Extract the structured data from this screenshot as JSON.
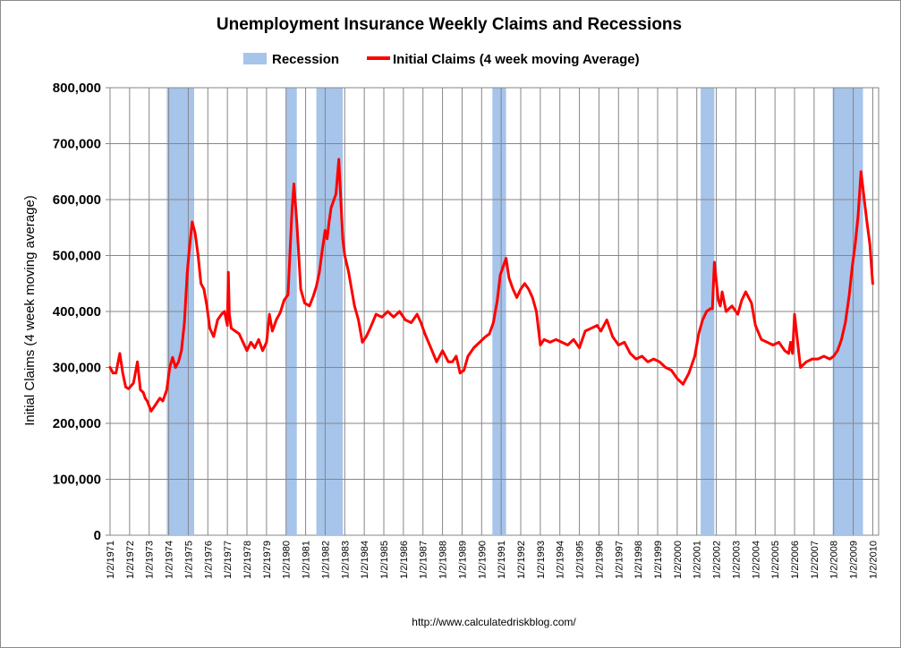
{
  "chart_data": {
    "type": "line",
    "title": "Unemployment Insurance Weekly Claims and Recessions",
    "ylabel": "Initial Claims (4 week moving average)",
    "xlabel": "",
    "source": "http://www.calculatedriskblog.com/",
    "ylim": [
      0,
      800000
    ],
    "xlim": [
      1971.0,
      2010.3
    ],
    "grid": "vertical and horizontal",
    "legend_position": "top-center",
    "yticks": [
      "0",
      "100,000",
      "200,000",
      "300,000",
      "400,000",
      "500,000",
      "600,000",
      "700,000",
      "800,000"
    ],
    "ytick_values": [
      0,
      100000,
      200000,
      300000,
      400000,
      500000,
      600000,
      700000,
      800000
    ],
    "xticks": [
      "1/2/1971",
      "1/2/1972",
      "1/2/1973",
      "1/2/1974",
      "1/2/1975",
      "1/2/1976",
      "1/2/1977",
      "1/2/1978",
      "1/2/1979",
      "1/2/1980",
      "1/2/1981",
      "1/2/1982",
      "1/2/1983",
      "1/2/1984",
      "1/2/1985",
      "1/2/1986",
      "1/2/1987",
      "1/2/1988",
      "1/2/1989",
      "1/2/1990",
      "1/2/1991",
      "1/2/1992",
      "1/2/1993",
      "1/2/1994",
      "1/2/1995",
      "1/2/1996",
      "1/2/1997",
      "1/2/1998",
      "1/2/1999",
      "1/2/2000",
      "1/2/2001",
      "1/2/2002",
      "1/2/2003",
      "1/2/2004",
      "1/2/2005",
      "1/2/2006",
      "1/2/2007",
      "1/2/2008",
      "1/2/2009",
      "1/2/2010"
    ],
    "xtick_values": [
      1971,
      1972,
      1973,
      1974,
      1975,
      1976,
      1977,
      1978,
      1979,
      1980,
      1981,
      1982,
      1983,
      1984,
      1985,
      1986,
      1987,
      1988,
      1989,
      1990,
      1991,
      1992,
      1993,
      1994,
      1995,
      1996,
      1997,
      1998,
      1999,
      2000,
      2001,
      2002,
      2003,
      2004,
      2005,
      2006,
      2007,
      2008,
      2009,
      2010
    ],
    "recessions": {
      "name": "Recession",
      "color": "#a7c4ea",
      "periods": [
        [
          1973.9,
          1975.3
        ],
        [
          1980.0,
          1980.55
        ],
        [
          1981.55,
          1982.9
        ],
        [
          1990.55,
          1991.25
        ],
        [
          2001.2,
          2001.9
        ],
        [
          2007.95,
          2009.5
        ]
      ]
    },
    "series": [
      {
        "name": "Initial Claims (4 week moving Average)",
        "color": "#ff0000",
        "x": [
          1971.0,
          1971.15,
          1971.3,
          1971.5,
          1971.65,
          1971.8,
          1971.95,
          1972.2,
          1972.4,
          1972.55,
          1972.7,
          1972.8,
          1972.9,
          1973.1,
          1973.3,
          1973.45,
          1973.55,
          1973.7,
          1973.9,
          1974.05,
          1974.2,
          1974.35,
          1974.5,
          1974.65,
          1974.8,
          1974.95,
          1975.05,
          1975.2,
          1975.35,
          1975.5,
          1975.65,
          1975.8,
          1975.95,
          1976.1,
          1976.3,
          1976.5,
          1976.7,
          1976.85,
          1977.0,
          1977.05,
          1977.1,
          1977.2,
          1977.4,
          1977.6,
          1977.8,
          1978.0,
          1978.2,
          1978.4,
          1978.6,
          1978.8,
          1979.0,
          1979.15,
          1979.3,
          1979.5,
          1979.7,
          1979.9,
          1980.1,
          1980.3,
          1980.4,
          1980.55,
          1980.75,
          1980.95,
          1981.2,
          1981.4,
          1981.55,
          1981.7,
          1981.85,
          1982.0,
          1982.1,
          1982.2,
          1982.3,
          1982.45,
          1982.55,
          1982.7,
          1982.8,
          1982.9,
          1983.0,
          1983.1,
          1983.2,
          1983.35,
          1983.5,
          1983.7,
          1983.9,
          1984.1,
          1984.3,
          1984.6,
          1984.9,
          1985.2,
          1985.5,
          1985.8,
          1986.1,
          1986.4,
          1986.7,
          1986.9,
          1987.1,
          1987.4,
          1987.7,
          1988.0,
          1988.3,
          1988.5,
          1988.7,
          1988.9,
          1989.1,
          1989.3,
          1989.6,
          1989.9,
          1990.2,
          1990.4,
          1990.6,
          1990.8,
          1990.95,
          1991.1,
          1991.25,
          1991.4,
          1991.6,
          1991.8,
          1992.0,
          1992.2,
          1992.4,
          1992.6,
          1992.8,
          1993.0,
          1993.2,
          1993.5,
          1993.8,
          1994.1,
          1994.4,
          1994.7,
          1995.0,
          1995.3,
          1995.6,
          1995.9,
          1996.1,
          1996.4,
          1996.7,
          1997.0,
          1997.3,
          1997.6,
          1997.9,
          1998.2,
          1998.5,
          1998.8,
          1999.1,
          1999.4,
          1999.7,
          2000.0,
          2000.3,
          2000.6,
          2000.9,
          2001.1,
          2001.3,
          2001.5,
          2001.7,
          2001.8,
          2001.9,
          2002.1,
          2002.2,
          2002.3,
          2002.5,
          2002.8,
          2003.1,
          2003.3,
          2003.5,
          2003.8,
          2004.0,
          2004.3,
          2004.6,
          2004.9,
          2005.2,
          2005.5,
          2005.7,
          2005.8,
          2005.9,
          2006.0,
          2006.3,
          2006.6,
          2006.9,
          2007.2,
          2007.5,
          2007.8,
          2008.0,
          2008.2,
          2008.4,
          2008.6,
          2008.8,
          2008.95,
          2009.1,
          2009.25,
          2009.4,
          2009.5,
          2009.6,
          2009.7,
          2009.85,
          2010.0
        ],
        "values": [
          300000,
          290000,
          290000,
          325000,
          290000,
          265000,
          262000,
          272000,
          310000,
          260000,
          255000,
          245000,
          240000,
          222000,
          232000,
          240000,
          245000,
          240000,
          260000,
          300000,
          318000,
          300000,
          310000,
          330000,
          380000,
          470000,
          510000,
          560000,
          540000,
          500000,
          450000,
          440000,
          410000,
          370000,
          355000,
          385000,
          395000,
          400000,
          375000,
          470000,
          395000,
          370000,
          365000,
          360000,
          345000,
          330000,
          345000,
          335000,
          350000,
          330000,
          345000,
          395000,
          365000,
          385000,
          398000,
          420000,
          430000,
          580000,
          628000,
          560000,
          440000,
          415000,
          410000,
          428000,
          445000,
          470000,
          510000,
          545000,
          530000,
          560000,
          585000,
          600000,
          610000,
          672000,
          600000,
          530000,
          500000,
          485000,
          470000,
          440000,
          410000,
          385000,
          345000,
          355000,
          370000,
          395000,
          390000,
          400000,
          390000,
          400000,
          385000,
          380000,
          395000,
          380000,
          360000,
          335000,
          310000,
          330000,
          310000,
          310000,
          320000,
          290000,
          295000,
          320000,
          335000,
          345000,
          355000,
          360000,
          380000,
          420000,
          465000,
          480000,
          495000,
          460000,
          440000,
          425000,
          440000,
          450000,
          440000,
          425000,
          400000,
          340000,
          350000,
          345000,
          350000,
          345000,
          340000,
          350000,
          335000,
          365000,
          370000,
          375000,
          365000,
          385000,
          355000,
          340000,
          345000,
          325000,
          315000,
          320000,
          310000,
          315000,
          310000,
          300000,
          295000,
          280000,
          270000,
          290000,
          320000,
          360000,
          385000,
          400000,
          405000,
          405000,
          488000,
          420000,
          410000,
          435000,
          400000,
          410000,
          395000,
          420000,
          435000,
          415000,
          375000,
          350000,
          345000,
          340000,
          345000,
          330000,
          325000,
          345000,
          325000,
          395000,
          300000,
          310000,
          315000,
          315000,
          320000,
          315000,
          320000,
          330000,
          350000,
          380000,
          430000,
          480000,
          520000,
          570000,
          650000,
          620000,
          590000,
          560000,
          520000,
          450000
        ]
      }
    ]
  }
}
